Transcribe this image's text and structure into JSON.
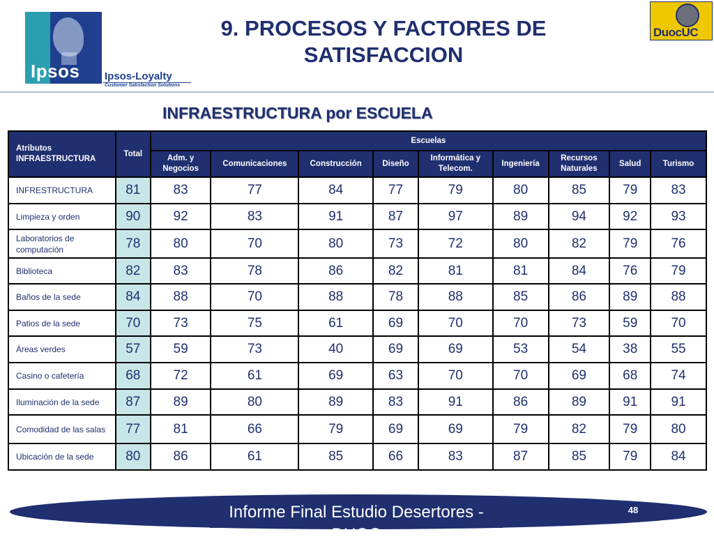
{
  "header": {
    "title": "9. PROCESOS Y FACTORES DE SATISFACCION",
    "subtitle": "INFRAESTRUCTURA por ESCUELA",
    "logo_left_text": "Ipsos",
    "logo_left_tagline": "Ipsos-Loyalty",
    "logo_left_sub": "Customer Satisfaction Solutions",
    "logo_right_text": "DuocUC"
  },
  "table": {
    "col_attr_header": "Atributos INFRAESTRUCTURA",
    "col_total_header": "Total",
    "group_header": "Escuelas",
    "schools": [
      "Adm. y Negocios",
      "Comunicaciones",
      "Construcción",
      "Diseño",
      "Informática y Telecom.",
      "Ingeniería",
      "Recursos Naturales",
      "Salud",
      "Turismo"
    ],
    "rows": [
      {
        "label": "INFRESTRUCTURA",
        "total": "81",
        "values": [
          "83",
          "77",
          "84",
          "77",
          "79",
          "80",
          "85",
          "79",
          "83"
        ]
      },
      {
        "label": "Limpieza y orden",
        "total": "90",
        "values": [
          "92",
          "83",
          "91",
          "87",
          "97",
          "89",
          "94",
          "92",
          "93"
        ]
      },
      {
        "label": "Laboratorios de computación",
        "total": "78",
        "values": [
          "80",
          "70",
          "80",
          "73",
          "72",
          "80",
          "82",
          "79",
          "76"
        ]
      },
      {
        "label": "Biblioteca",
        "total": "82",
        "values": [
          "83",
          "78",
          "86",
          "82",
          "81",
          "81",
          "84",
          "76",
          "79"
        ]
      },
      {
        "label": "Baños de la sede",
        "total": "84",
        "values": [
          "88",
          "70",
          "88",
          "78",
          "88",
          "85",
          "86",
          "89",
          "88"
        ]
      },
      {
        "label": "Patios de la sede",
        "total": "70",
        "values": [
          "73",
          "75",
          "61",
          "69",
          "70",
          "70",
          "73",
          "59",
          "70"
        ]
      },
      {
        "label": "Áreas verdes",
        "total": "57",
        "values": [
          "59",
          "73",
          "40",
          "69",
          "69",
          "53",
          "54",
          "38",
          "55"
        ]
      },
      {
        "label": "Casino o cafetería",
        "total": "68",
        "values": [
          "72",
          "61",
          "69",
          "63",
          "70",
          "70",
          "69",
          "68",
          "74"
        ]
      },
      {
        "label": "Iluminación de la sede",
        "total": "87",
        "values": [
          "89",
          "80",
          "89",
          "83",
          "91",
          "86",
          "89",
          "91",
          "91"
        ]
      },
      {
        "label": "Comodidad de las salas",
        "total": "77",
        "values": [
          "81",
          "66",
          "79",
          "69",
          "69",
          "79",
          "82",
          "79",
          "80"
        ]
      },
      {
        "label": "Ubicación de la sede",
        "total": "80",
        "values": [
          "86",
          "61",
          "85",
          "66",
          "83",
          "87",
          "85",
          "79",
          "84"
        ]
      }
    ]
  },
  "footer": {
    "text": "Informe Final Estudio Desertores - DUOC",
    "page": "48"
  },
  "colors": {
    "navy": "#1f2f6f",
    "total_highlight": "#c8e6e8",
    "ipsos_blue": "#1f3f8f",
    "ipsos_teal": "#2a9fb0",
    "duoc_yellow": "#f0c800"
  }
}
